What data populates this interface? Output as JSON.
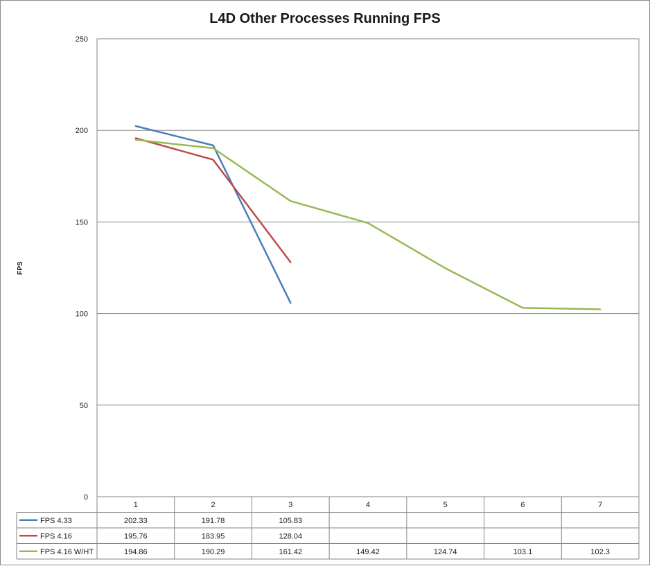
{
  "chart_data": {
    "type": "line",
    "title": "L4D Other Processes Running FPS",
    "xlabel": "",
    "ylabel": "FPS",
    "ylim": [
      0,
      250
    ],
    "yticks": [
      0,
      50,
      100,
      150,
      200,
      250
    ],
    "categories": [
      "1",
      "2",
      "3",
      "4",
      "5",
      "6",
      "7"
    ],
    "grid": true,
    "legend": "data-table-bottom",
    "series": [
      {
        "name": "FPS 4.33",
        "color": "#4a7ebb",
        "values": [
          202.33,
          191.78,
          105.83,
          null,
          null,
          null,
          null
        ]
      },
      {
        "name": "FPS 4.16",
        "color": "#be4b48",
        "values": [
          195.76,
          183.95,
          128.04,
          null,
          null,
          null,
          null
        ]
      },
      {
        "name": "FPS 4.16 W/HT",
        "color": "#98b954",
        "values": [
          194.86,
          190.29,
          161.42,
          149.42,
          124.74,
          103.1,
          102.3
        ]
      }
    ]
  }
}
